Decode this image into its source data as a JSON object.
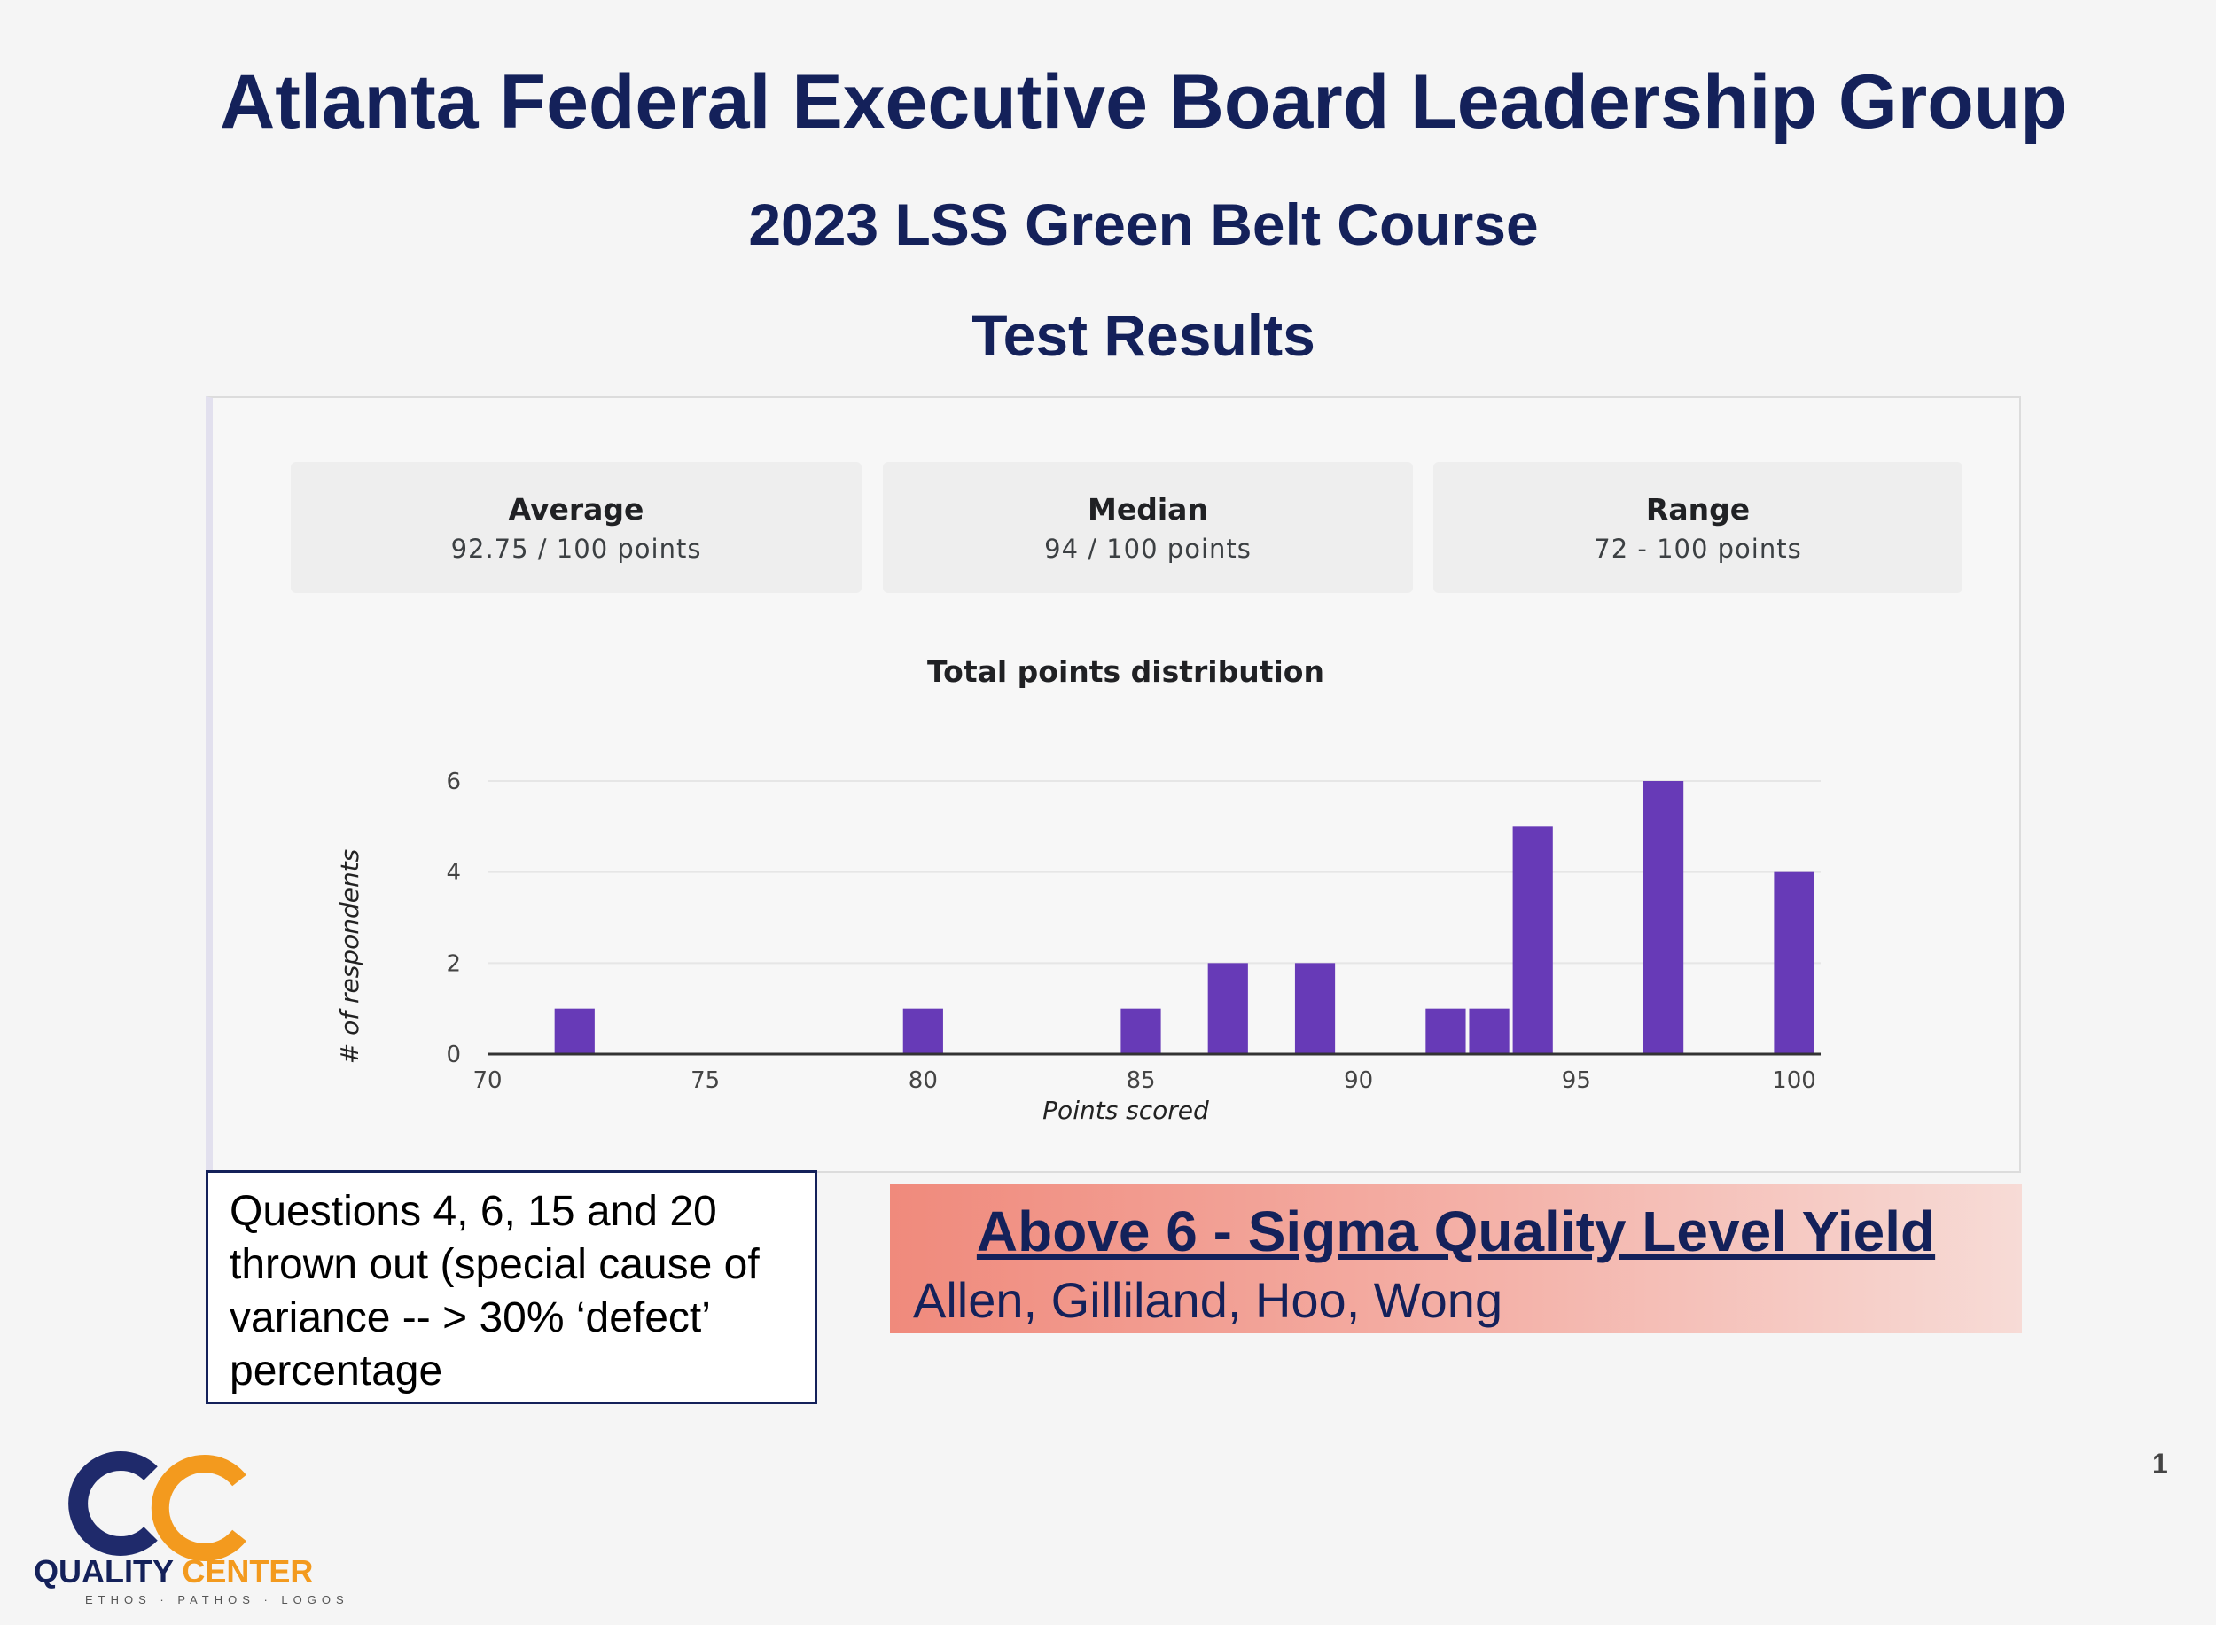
{
  "slide": {
    "title": "Atlanta Federal Executive Board Leadership Group",
    "subtitle": "2023 LSS Green Belt Course",
    "subtitle2": "Test Results",
    "page_number": "1"
  },
  "stats": {
    "average": {
      "label": "Average",
      "value": "92.75 / 100 points"
    },
    "median": {
      "label": "Median",
      "value": "94 / 100 points"
    },
    "range": {
      "label": "Range",
      "value": "72 - 100 points"
    }
  },
  "chart_data": {
    "type": "bar",
    "title": "Total points distribution",
    "xlabel": "Points scored",
    "ylabel": "# of respondents",
    "xlim": [
      70,
      100
    ],
    "ylim": [
      0,
      6
    ],
    "xticks": [
      70,
      75,
      80,
      85,
      90,
      95,
      100
    ],
    "yticks": [
      0,
      2,
      4,
      6
    ],
    "x": [
      72,
      80,
      85,
      87,
      89,
      92,
      93,
      94,
      97,
      100
    ],
    "values": [
      1,
      1,
      1,
      2,
      2,
      1,
      1,
      5,
      6,
      4
    ],
    "bar_color": "#673ab7",
    "grid": true
  },
  "note": {
    "text": "Questions 4, 6, 15 and 20 thrown out (special cause of variance -- > 30% ‘defect’ percentage"
  },
  "highlight": {
    "title": "Above 6 - Sigma Quality Level Yield",
    "names": "Allen, Gilliland, Hoo, Wong"
  },
  "logo": {
    "name_part1": "QUALITY",
    "name_part2": "CENTER",
    "tagline": "ETHOS · PATHOS · LOGOS",
    "navy": "#1f2a6b",
    "orange": "#f39a1e"
  }
}
